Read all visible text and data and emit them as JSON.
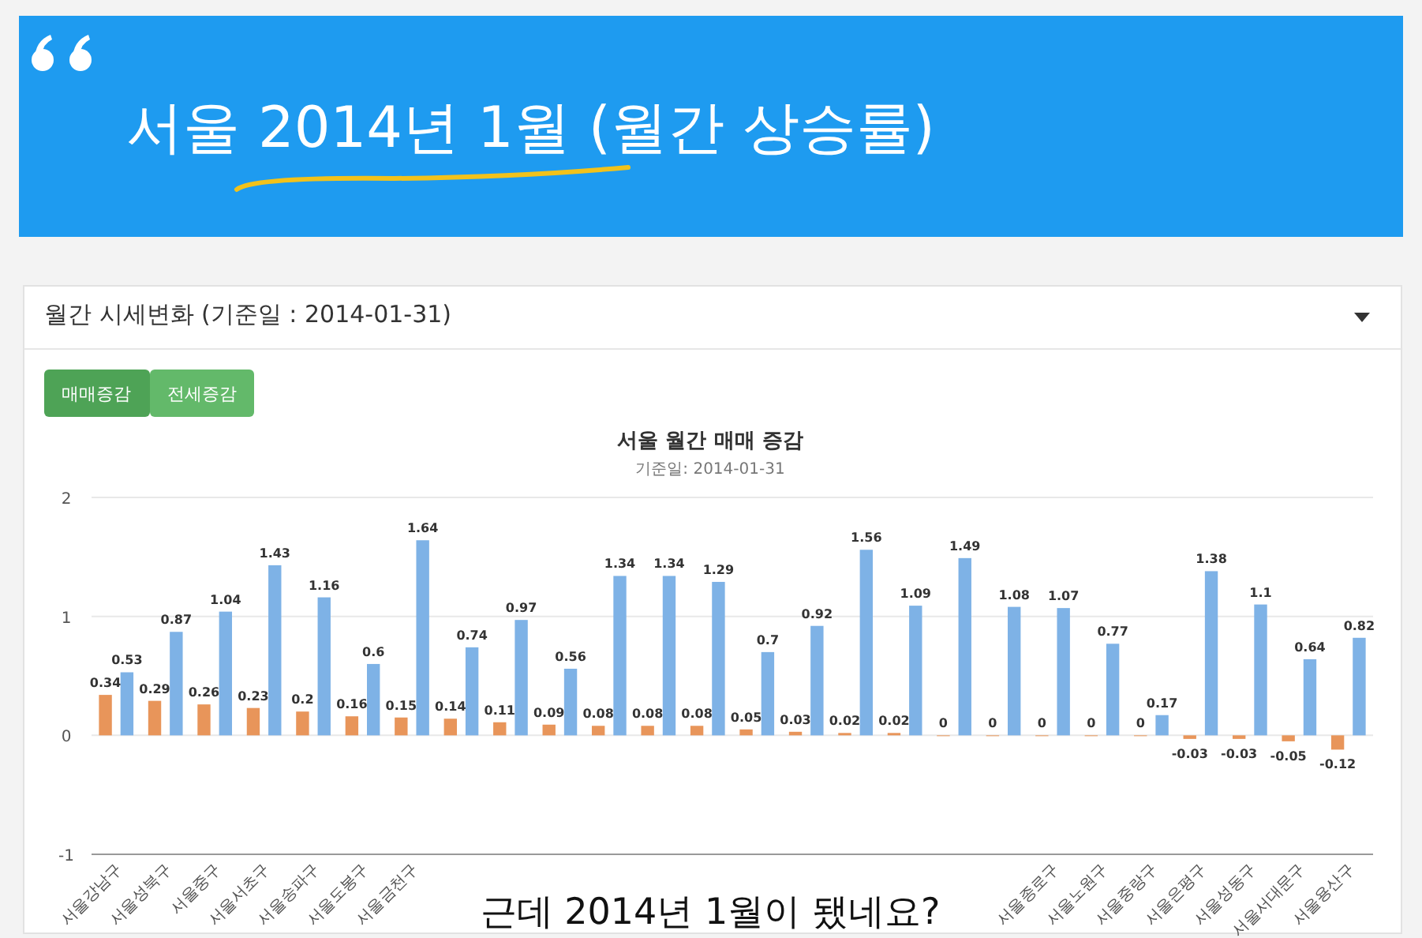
{
  "chart_data": {
    "type": "bar",
    "title": "서울 월간 매매 증감",
    "subtitle": "기준일: 2014-01-31",
    "annotations": [
      "서울 2014년 1월 (월간 상승률)",
      "월간 시세변화 (기준일 : 2014-01-31)",
      "매매증감",
      "전세증감",
      "근데 2014년 1월이 됐네요?"
    ],
    "categories": [
      "서울강남구",
      "서울성북구",
      "서울중구",
      "서울서초구",
      "서울송파구",
      "서울도봉구",
      "서울금천구",
      null,
      null,
      null,
      null,
      null,
      null,
      null,
      null,
      null,
      null,
      null,
      null,
      "서울종로구",
      "서울노원구",
      "서울중랑구",
      "서울은평구",
      "서울성동구",
      "서울서대문구",
      "서울용산구"
    ],
    "series": [
      {
        "color": "#e8955a",
        "values": [
          0.34,
          0.29,
          0.26,
          0.23,
          0.2,
          0.16,
          0.15,
          0.14,
          0.11,
          0.09,
          0.08,
          0.08,
          0.08,
          0.05,
          0.03,
          0.02,
          0.02,
          0,
          0,
          0,
          0,
          0,
          -0.03,
          -0.03,
          -0.05,
          -0.12
        ]
      },
      {
        "color": "#7eb2e6",
        "values": [
          0.53,
          0.87,
          1.04,
          1.43,
          1.16,
          0.6,
          1.64,
          0.74,
          0.97,
          0.56,
          1.34,
          1.34,
          1.29,
          0.7,
          0.92,
          1.56,
          1.09,
          1.49,
          1.08,
          1.07,
          0.77,
          0.17,
          1.38,
          1.1,
          0.64,
          0.82
        ]
      }
    ],
    "ylim": [
      -1,
      2
    ],
    "yticks": [
      -1,
      0,
      1,
      2
    ],
    "grid": "y",
    "data_labels": true
  }
}
